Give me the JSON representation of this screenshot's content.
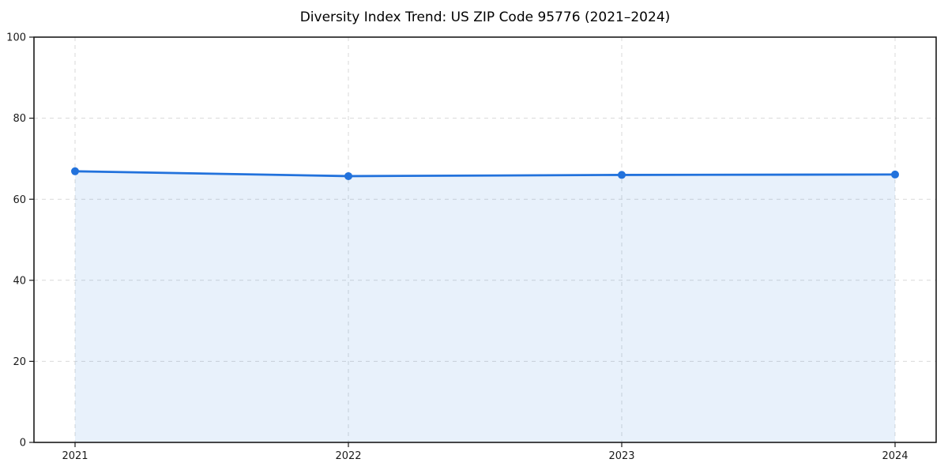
{
  "chart_data": {
    "type": "area",
    "title": "Diversity Index Trend: US ZIP Code 95776 (2021–2024)",
    "categories": [
      "2021",
      "2022",
      "2023",
      "2024"
    ],
    "values": [
      66.9,
      65.7,
      66.0,
      66.1
    ],
    "xlabel": "",
    "ylabel": "",
    "ylim": [
      0,
      100
    ],
    "yticks": [
      0,
      20,
      40,
      60,
      80,
      100
    ],
    "grid": "dashed-both-axes",
    "legend": "none",
    "colors": {
      "line": "#2272dc",
      "marker": "#2272dc",
      "fill": "#2272dc",
      "fill_opacity": 0.1,
      "grid": "#d9d9d9",
      "spine": "#1a1a1a",
      "tick_label": "#1a1a1a",
      "title": "#000000",
      "background": "#ffffff"
    }
  }
}
